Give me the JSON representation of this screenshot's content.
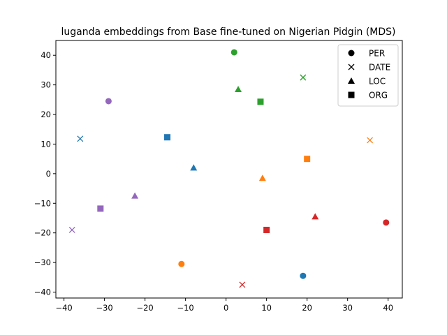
{
  "chart_data": {
    "type": "scatter",
    "title": "luganda embeddings from Base fine-tuned on Nigerian Pidgin (MDS)",
    "xlabel": "",
    "ylabel": "",
    "xlim": [
      -42,
      43.5
    ],
    "ylim": [
      -42,
      45
    ],
    "xticks": [
      -40,
      -30,
      -20,
      -10,
      0,
      10,
      20,
      30,
      40
    ],
    "yticks": [
      -40,
      -30,
      -20,
      -10,
      0,
      10,
      20,
      30,
      40
    ],
    "grid": false,
    "legend": {
      "placement": "top-right",
      "entries": [
        {
          "label": "PER",
          "marker": "circle"
        },
        {
          "label": "DATE",
          "marker": "x"
        },
        {
          "label": "LOC",
          "marker": "triangle"
        },
        {
          "label": "ORG",
          "marker": "square"
        }
      ]
    },
    "points": [
      {
        "x": 2,
        "y": 41,
        "marker": "circle",
        "color": "#2ca02c"
      },
      {
        "x": -29,
        "y": 24.5,
        "marker": "circle",
        "color": "#9467bd"
      },
      {
        "x": 39.5,
        "y": -16.5,
        "marker": "circle",
        "color": "#d62728"
      },
      {
        "x": -11,
        "y": -30.5,
        "marker": "circle",
        "color": "#ff7f0e"
      },
      {
        "x": 19,
        "y": -34.5,
        "marker": "circle",
        "color": "#1f77b4"
      },
      {
        "x": 19,
        "y": 32.5,
        "marker": "x",
        "color": "#2ca02c"
      },
      {
        "x": -36,
        "y": 11.8,
        "marker": "x",
        "color": "#1f77b4"
      },
      {
        "x": 35.5,
        "y": 11.3,
        "marker": "x",
        "color": "#ff7f0e"
      },
      {
        "x": -38,
        "y": -19,
        "marker": "x",
        "color": "#9467bd"
      },
      {
        "x": 4,
        "y": -37.5,
        "marker": "x",
        "color": "#d62728"
      },
      {
        "x": 3,
        "y": 28.5,
        "marker": "triangle",
        "color": "#2ca02c"
      },
      {
        "x": -8,
        "y": 2,
        "marker": "triangle",
        "color": "#1f77b4"
      },
      {
        "x": 9,
        "y": -1.5,
        "marker": "triangle",
        "color": "#ff7f0e"
      },
      {
        "x": -22.5,
        "y": -7.5,
        "marker": "triangle",
        "color": "#9467bd"
      },
      {
        "x": 22,
        "y": -14.5,
        "marker": "triangle",
        "color": "#d62728"
      },
      {
        "x": 8.5,
        "y": 24.3,
        "marker": "square",
        "color": "#2ca02c"
      },
      {
        "x": -14.5,
        "y": 12.3,
        "marker": "square",
        "color": "#1f77b4"
      },
      {
        "x": 20,
        "y": 5,
        "marker": "square",
        "color": "#ff7f0e"
      },
      {
        "x": -31,
        "y": -11.8,
        "marker": "square",
        "color": "#9467bd"
      },
      {
        "x": 10,
        "y": -19,
        "marker": "square",
        "color": "#d62728"
      }
    ]
  }
}
